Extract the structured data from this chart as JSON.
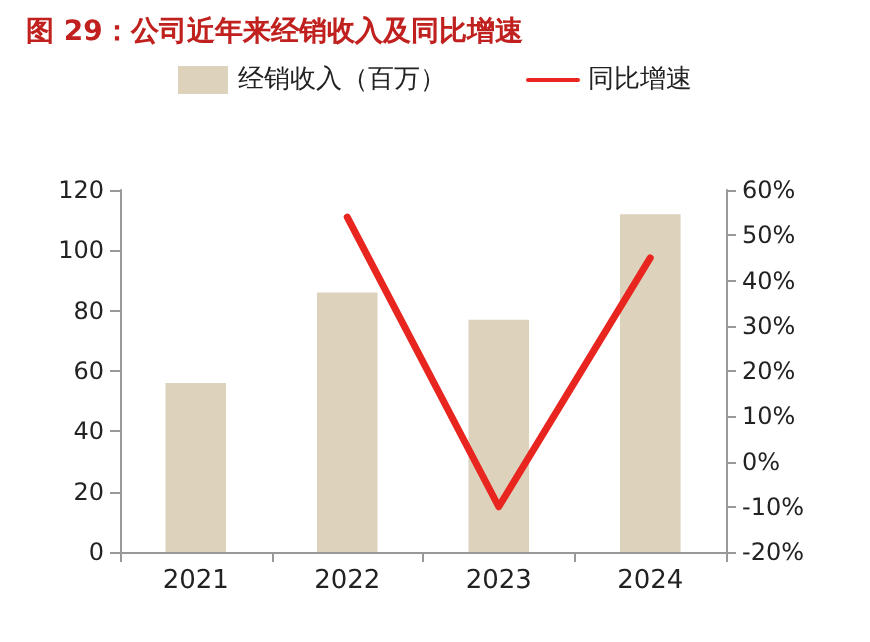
{
  "chart_data": {
    "type": "bar",
    "title": "图 29：公司近年来经销收入及同比增速",
    "categories": [
      "2021",
      "2022",
      "2023",
      "2024"
    ],
    "series": [
      {
        "name": "经销收入（百万）",
        "color": "#ddd3bc",
        "values": [
          56,
          86,
          77,
          112
        ]
      },
      {
        "name": "同比增速",
        "type": "line",
        "axis": "y2",
        "color": "#e8251f",
        "values": [
          null,
          54,
          -10,
          45
        ]
      }
    ],
    "ylim": [
      0,
      120
    ],
    "yticks": [
      0,
      20,
      40,
      60,
      80,
      100,
      120
    ],
    "y2lim": [
      -20,
      60
    ],
    "y2ticks": [
      {
        "value": -20,
        "label": "-20%"
      },
      {
        "value": -10,
        "label": "-10%"
      },
      {
        "value": 0,
        "label": "0%"
      },
      {
        "value": 10,
        "label": "10%"
      },
      {
        "value": 20,
        "label": "20%"
      },
      {
        "value": 30,
        "label": "30%"
      },
      {
        "value": 40,
        "label": "40%"
      },
      {
        "value": 50,
        "label": "50%"
      },
      {
        "value": 60,
        "label": "60%"
      }
    ],
    "grid": false,
    "legend": "top",
    "marker": "none",
    "line_style": "solid"
  }
}
